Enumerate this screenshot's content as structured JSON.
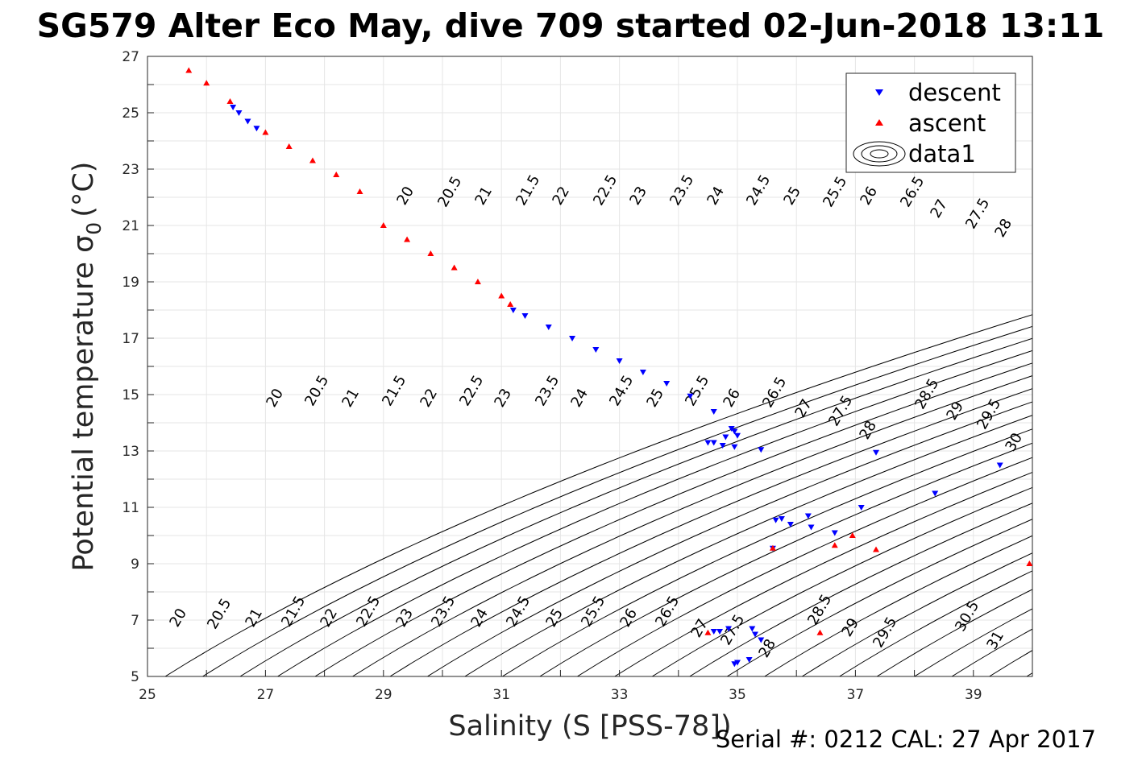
{
  "chart_data": {
    "type": "scatter",
    "title": "SG579 Alter Eco May, dive 709 started 02-Jun-2018 13:11",
    "xlabel": "Salinity (S [PSS-78])",
    "ylabel": "Potential temperature σ",
    "ylabel_subscript": "0",
    "ylabel_unit": "(°C)",
    "xlim": [
      25,
      40
    ],
    "ylim": [
      5,
      27
    ],
    "xticks": [
      "25",
      "27",
      "29",
      "31",
      "33",
      "35",
      "37",
      "39"
    ],
    "yticks": [
      "5",
      "7",
      "9",
      "11",
      "13",
      "15",
      "17",
      "19",
      "21",
      "23",
      "25",
      "27"
    ],
    "grid": true,
    "legend_position": "top-right",
    "legend": [
      {
        "label": "descent",
        "marker": "triangle-down",
        "color": "#0000ff"
      },
      {
        "label": "ascent",
        "marker": "triangle-up",
        "color": "#ff0000"
      },
      {
        "label": "data1",
        "marker": "contour",
        "color": "#000000"
      }
    ],
    "series": [
      {
        "name": "descent",
        "color": "#0000ff",
        "marker": "triangle-down",
        "points": [
          [
            26.45,
            25.2
          ],
          [
            26.55,
            25.0
          ],
          [
            26.7,
            24.7
          ],
          [
            26.85,
            24.45
          ],
          [
            31.2,
            18.0
          ],
          [
            31.4,
            17.8
          ],
          [
            31.8,
            17.4
          ],
          [
            32.2,
            17.0
          ],
          [
            32.6,
            16.6
          ],
          [
            33.0,
            16.2
          ],
          [
            33.4,
            15.8
          ],
          [
            33.8,
            15.4
          ],
          [
            34.2,
            14.95
          ],
          [
            34.6,
            14.4
          ],
          [
            34.9,
            13.8
          ],
          [
            35.0,
            13.55
          ],
          [
            34.95,
            13.7
          ],
          [
            34.8,
            13.5
          ],
          [
            34.6,
            13.3
          ],
          [
            34.5,
            13.3
          ],
          [
            34.75,
            13.2
          ],
          [
            34.95,
            13.15
          ],
          [
            35.4,
            13.05
          ],
          [
            37.35,
            12.95
          ],
          [
            39.45,
            12.5
          ],
          [
            38.35,
            11.5
          ],
          [
            37.1,
            11.0
          ],
          [
            36.2,
            10.7
          ],
          [
            35.75,
            10.6
          ],
          [
            35.65,
            10.55
          ],
          [
            35.9,
            10.4
          ],
          [
            36.25,
            10.3
          ],
          [
            36.65,
            10.1
          ],
          [
            35.6,
            9.55
          ],
          [
            34.85,
            6.7
          ],
          [
            34.7,
            6.6
          ],
          [
            34.6,
            6.6
          ],
          [
            35.25,
            6.7
          ],
          [
            35.3,
            6.5
          ],
          [
            35.4,
            6.3
          ],
          [
            35.2,
            5.6
          ],
          [
            35.0,
            5.5
          ],
          [
            34.95,
            5.45
          ]
        ]
      },
      {
        "name": "ascent",
        "color": "#ff0000",
        "marker": "triangle-up",
        "points": [
          [
            25.7,
            26.5
          ],
          [
            26.0,
            26.05
          ],
          [
            26.4,
            25.4
          ],
          [
            27.0,
            24.3
          ],
          [
            27.4,
            23.8
          ],
          [
            27.8,
            23.3
          ],
          [
            28.2,
            22.8
          ],
          [
            28.6,
            22.2
          ],
          [
            29.0,
            21.0
          ],
          [
            29.4,
            20.5
          ],
          [
            29.8,
            20.0
          ],
          [
            30.2,
            19.5
          ],
          [
            30.6,
            19.0
          ],
          [
            31.0,
            18.5
          ],
          [
            31.15,
            18.2
          ],
          [
            35.6,
            9.55
          ],
          [
            36.65,
            9.65
          ],
          [
            36.95,
            10.0
          ],
          [
            37.35,
            9.5
          ],
          [
            39.95,
            9.0
          ],
          [
            34.5,
            6.55
          ],
          [
            36.4,
            6.55
          ]
        ]
      }
    ]
  },
  "footer": {
    "serial": "Serial #: 0212  CAL: 27 Apr 2017"
  }
}
